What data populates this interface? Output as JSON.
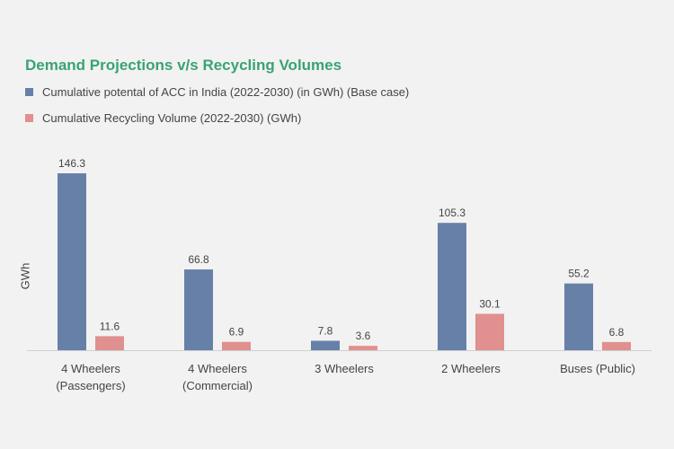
{
  "chart_data": {
    "type": "bar",
    "title": "Demand Projections v/s Recycling Volumes",
    "ylabel": "GWh",
    "xlabel": "",
    "categories": [
      [
        "4 Wheelers",
        "(Passengers)"
      ],
      [
        "4 Wheelers",
        "(Commercial)"
      ],
      [
        "3 Wheelers"
      ],
      [
        "2 Wheelers"
      ],
      [
        "Buses (Public)"
      ]
    ],
    "series": [
      {
        "name": "Cumulative potental of ACC in India (2022-2030) (in GWh) (Base case)",
        "color": "#6780a8",
        "values": [
          146.3,
          66.8,
          7.8,
          105.3,
          55.2
        ],
        "labels": [
          "146.3",
          "66.8",
          "7.8",
          "105.3",
          "55.2"
        ]
      },
      {
        "name": "Cumulative Recycling Volume (2022-2030) (GWh)",
        "color": "#e0908e",
        "values": [
          11.6,
          6.9,
          3.6,
          30.1,
          6.8
        ],
        "labels": [
          "11.6",
          "6.9",
          "3.6",
          "30.1",
          "6.8"
        ]
      }
    ],
    "ylim": [
      0,
      146.3
    ],
    "grid": false,
    "legend_position": "top-left",
    "colors": {
      "title": "#3aa372",
      "text": "#444444",
      "axis": "#cfcfcf",
      "background": "#f2f2f2"
    }
  }
}
